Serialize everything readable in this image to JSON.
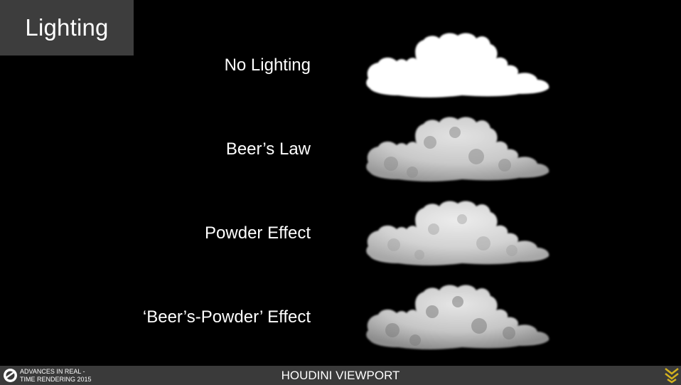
{
  "header": {
    "title": "Lighting"
  },
  "rows": [
    {
      "label": "No Lighting"
    },
    {
      "label": "Beer’s Law"
    },
    {
      "label": "Powder Effect"
    },
    {
      "label": "‘Beer’s-Powder’ Effect"
    }
  ],
  "footer": {
    "left_line1": "ADVANCES IN REAL -",
    "left_line2": "TIME RENDERING 2015",
    "center": "HOUDINI VIEWPORT"
  },
  "colors": {
    "background": "#000000",
    "title_box": "#3d3d3d",
    "footer_bar": "#3a3a3a",
    "brand_accent": "#d4b21f"
  },
  "icons": {
    "footer_left": "advances-logo-icon",
    "footer_right": "chevron-logo-icon"
  }
}
